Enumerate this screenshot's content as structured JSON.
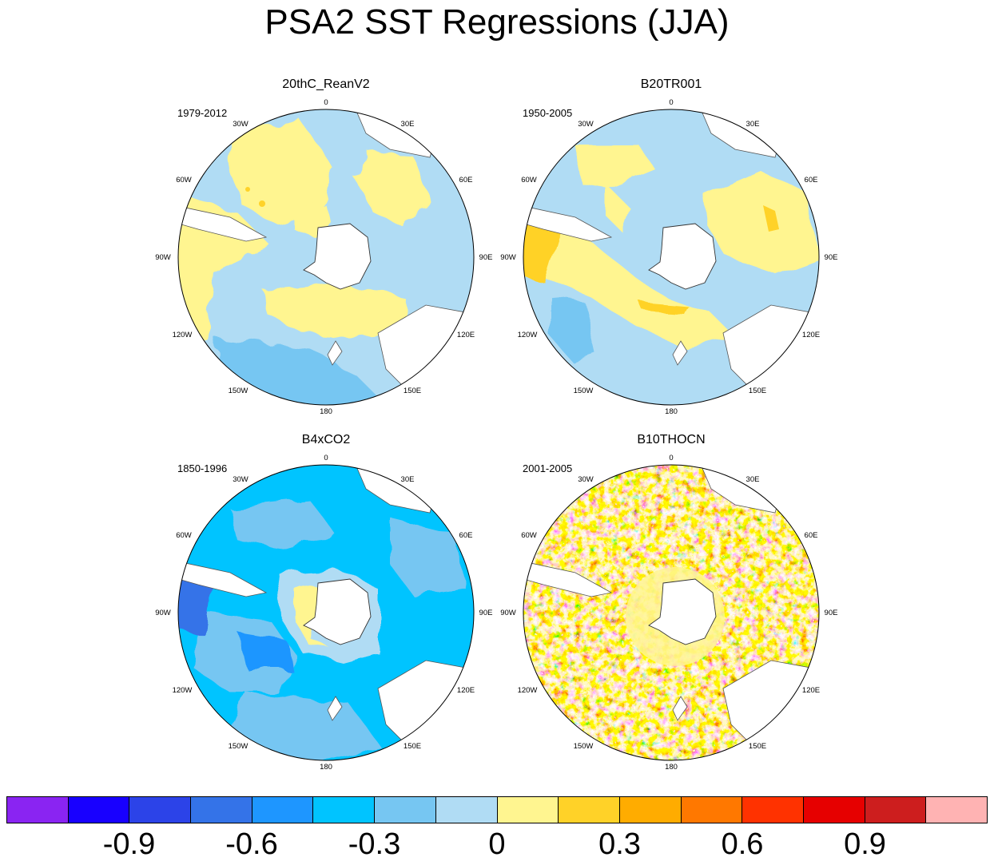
{
  "title": "PSA2 SST Regressions (JJA)",
  "panels": [
    {
      "title": "20thC_ReanV2",
      "years": "1979-2012"
    },
    {
      "title": "B20TR001",
      "years": "1950-2005"
    },
    {
      "title": "B4xCO2",
      "years": "1850-1996"
    },
    {
      "title": "B10THOCN",
      "years": "2001-2005"
    }
  ],
  "lon_labels": [
    "0",
    "30E",
    "60E",
    "90E",
    "120E",
    "150E",
    "180",
    "150W",
    "120W",
    "90W",
    "60W",
    "30W"
  ],
  "colorbar": {
    "colors": [
      "#8a24f2",
      "#1800ff",
      "#2c43e8",
      "#3473e8",
      "#1e96ff",
      "#00c4ff",
      "#76c6f2",
      "#b0dcf4",
      "#fff590",
      "#ffd228",
      "#ffac00",
      "#ff7800",
      "#ff3200",
      "#e60000",
      "#cd1e1e",
      "#ffb3b3"
    ],
    "labels": [
      "-0.9",
      "-0.6",
      "-0.3",
      "0",
      "0.3",
      "0.6",
      "0.9"
    ]
  }
}
